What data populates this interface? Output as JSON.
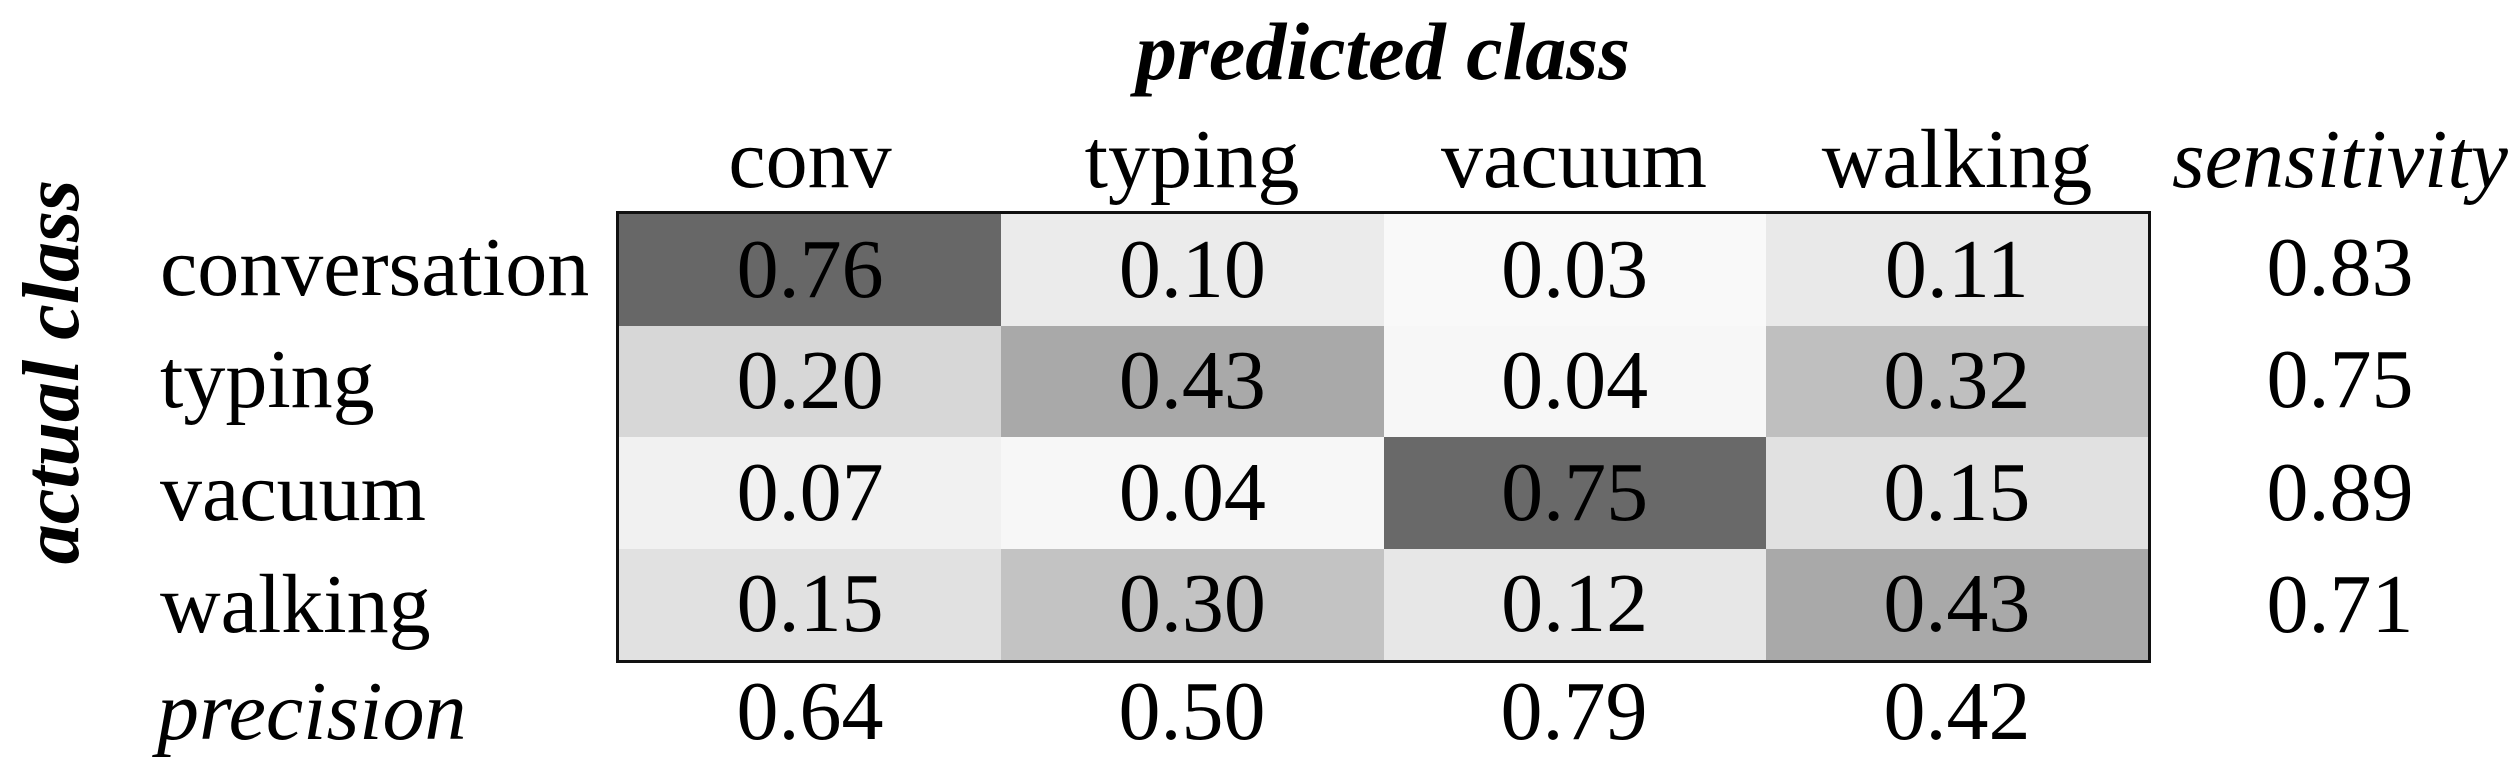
{
  "figure": {
    "title": "predicted class",
    "y_axis_title": "actual class"
  },
  "chart_data": {
    "type": "heatmap",
    "subtype": "confusion-matrix",
    "title": "predicted class",
    "xlabel": "predicted class",
    "ylabel": "actual class",
    "predicted_classes": [
      "conv",
      "typing",
      "vacuum",
      "walking"
    ],
    "actual_classes": [
      "conversation",
      "typing",
      "vacuum",
      "walking"
    ],
    "matrix_values": [
      [
        0.76,
        0.1,
        0.03,
        0.11
      ],
      [
        0.2,
        0.43,
        0.04,
        0.32
      ],
      [
        0.07,
        0.04,
        0.75,
        0.15
      ],
      [
        0.15,
        0.3,
        0.12,
        0.43
      ]
    ],
    "matrix_display": [
      [
        "0.76",
        "0.10",
        "0.03",
        "0.11"
      ],
      [
        "0.20",
        "0.43",
        "0.04",
        "0.32"
      ],
      [
        "0.07",
        "0.04",
        "0.75",
        "0.15"
      ],
      [
        "0.15",
        "0.30",
        "0.12",
        "0.43"
      ]
    ],
    "cell_colors": [
      [
        "#676767",
        "#ebebeb",
        "#f9f9f9",
        "#e9e9e9"
      ],
      [
        "#d7d7d7",
        "#a9a9a9",
        "#f7f7f7",
        "#bfbfbf"
      ],
      [
        "#f1f1f1",
        "#f7f7f7",
        "#696969",
        "#e1e1e1"
      ],
      [
        "#e1e1e1",
        "#c3c3c3",
        "#e7e7e7",
        "#a9a9a9"
      ]
    ],
    "sensitivity": {
      "label": "sensitivity",
      "values": [
        "0.83",
        "0.75",
        "0.89",
        "0.71"
      ]
    },
    "precision": {
      "label": "precision",
      "values": [
        "0.64",
        "0.50",
        "0.79",
        "0.42"
      ]
    },
    "layout_hints": {
      "value_range": [
        0,
        1
      ],
      "shading_rule": "gray_level = 255 - 200 * value (0=white, 1=dark)",
      "grid": "off",
      "legend": "none"
    },
    "colors": {
      "background": "#ffffff",
      "text": "#000000",
      "matrix_border": "#111111"
    }
  }
}
